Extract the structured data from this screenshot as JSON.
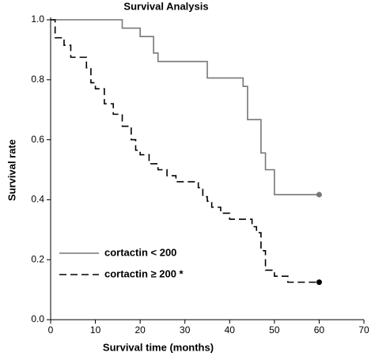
{
  "chart_data": {
    "type": "step",
    "title": "Survival Analysis",
    "x_label": "Survival time (months)",
    "y_label": "Survival rate",
    "xlim": [
      0,
      70
    ],
    "xticks": [
      0,
      10,
      20,
      30,
      40,
      50,
      60,
      70
    ],
    "ylim": [
      0,
      1.0
    ],
    "yticks": [
      {
        "value": 0,
        "label": "0.0"
      },
      {
        "value": 0.2,
        "label": "0.2"
      },
      {
        "value": 0.4,
        "label": "0.4"
      },
      {
        "value": 0.6,
        "label": "0.6"
      },
      {
        "value": 0.8,
        "label": "0.8"
      },
      {
        "value": 1.0,
        "label": "1.0"
      }
    ],
    "series": [
      {
        "name": "cortactin < 200",
        "color": "#777777",
        "dash": false,
        "x": [
          0,
          16,
          20,
          23,
          24,
          35,
          43,
          44,
          47,
          48,
          50,
          60
        ],
        "values": [
          1.0,
          0.972,
          0.944,
          0.889,
          0.861,
          0.806,
          0.778,
          0.667,
          0.556,
          0.5,
          0.417,
          0.417
        ]
      },
      {
        "name": "cortactin ≥ 200 *",
        "color": "#000000",
        "dash": true,
        "x": [
          0,
          1,
          3,
          4.5,
          8,
          9,
          10,
          12,
          14,
          16,
          18,
          19,
          20,
          22,
          24,
          26,
          28,
          33,
          34,
          35,
          36,
          38,
          40,
          45,
          46,
          47,
          48,
          50,
          53,
          60
        ],
        "values": [
          1.0,
          0.94,
          0.915,
          0.875,
          0.84,
          0.79,
          0.77,
          0.72,
          0.685,
          0.645,
          0.6,
          0.565,
          0.55,
          0.52,
          0.5,
          0.48,
          0.46,
          0.44,
          0.41,
          0.395,
          0.375,
          0.355,
          0.335,
          0.31,
          0.29,
          0.23,
          0.165,
          0.145,
          0.125,
          0.125
        ]
      }
    ]
  }
}
